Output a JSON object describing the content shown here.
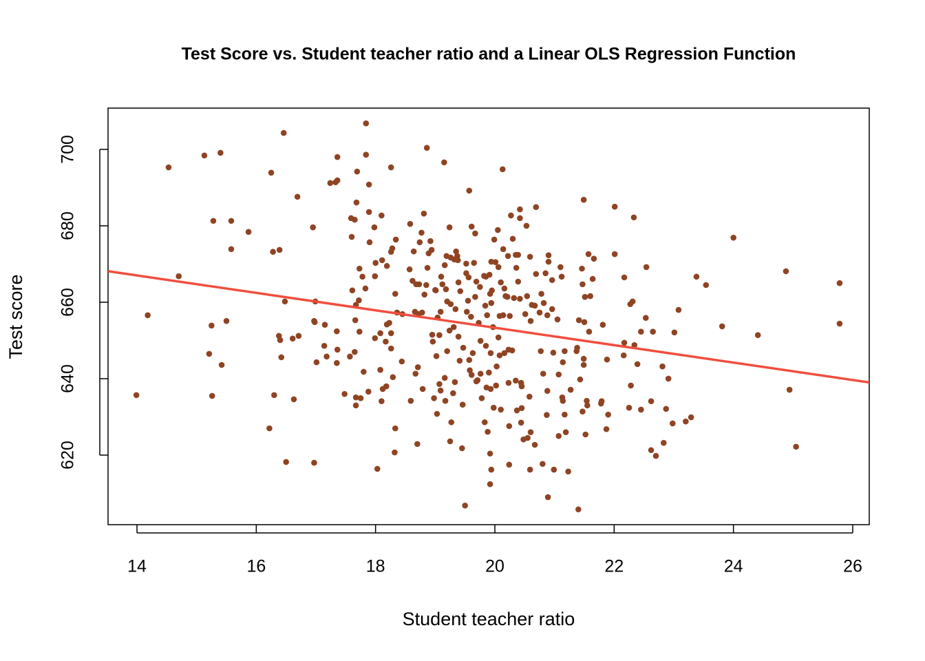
{
  "chart_data": {
    "type": "scatter",
    "title": "Test Score vs. Student teacher ratio and a Linear OLS Regression Function",
    "x_label": "Student teacher ratio",
    "y_label": "Test score",
    "color": "#8f4423",
    "xlim": [
      13.515,
      26.277
    ],
    "ylim": [
      601.8,
      710.8
    ],
    "xticks": [
      14,
      16,
      18,
      20,
      22,
      24,
      26
    ],
    "yticks": [
      620,
      640,
      660,
      680,
      700
    ],
    "regression": {
      "intercept": 698.93,
      "slope": -2.28,
      "color": "#f04e3e"
    },
    "x": [
      25.78,
      25.78,
      25.05,
      24.94,
      24.88,
      24.41,
      24.0,
      23.81,
      23.54,
      23.38,
      23.29,
      23.2,
      23.08,
      23.01,
      22.98,
      22.91,
      22.87,
      22.83,
      22.81,
      22.7,
      22.62,
      22.65,
      22.62,
      22.54,
      22.53,
      22.45,
      22.45,
      22.39,
      22.33,
      22.34,
      22.31,
      22.27,
      22.28,
      22.25,
      22.17,
      22.17,
      22.16,
      22.01,
      22.01,
      21.9,
      21.87,
      21.88,
      21.79,
      21.81,
      21.78,
      21.66,
      21.64,
      21.6,
      21.58,
      21.57,
      21.55,
      21.54,
      21.51,
      21.52,
      21.49,
      21.49,
      21.47,
      21.47,
      21.49,
      21.5,
      21.46,
      21.43,
      21.4,
      21.41,
      21.37,
      21.38,
      21.27,
      21.23,
      21.19,
      21.17,
      21.17,
      21.14,
      21.14,
      21.13,
      21.12,
      21.1,
      21.07,
      21.07,
      21.05,
      20.99,
      20.98,
      20.96,
      20.96,
      20.88,
      20.9,
      20.9,
      20.89,
      20.88,
      20.87,
      20.85,
      20.82,
      20.81,
      20.8,
      20.78,
      20.77,
      20.75,
      20.69,
      20.69,
      20.67,
      20.67,
      20.62,
      20.6,
      20.6,
      20.59,
      20.59,
      20.58,
      20.55,
      20.54,
      20.53,
      20.51,
      20.48,
      20.45,
      20.45,
      20.44,
      20.44,
      20.42,
      20.42,
      20.42,
      20.39,
      20.39,
      20.37,
      20.36,
      20.35,
      20.35,
      20.32,
      20.3,
      20.29,
      20.27,
      20.25,
      20.24,
      20.24,
      20.23,
      20.23,
      20.22,
      20.21,
      20.18,
      20.16,
      20.16,
      20.14,
      20.14,
      20.13,
      20.1,
      20.1,
      20.08,
      20.08,
      20.06,
      20.06,
      20.05,
      20.03,
      20.02,
      20.01,
      19.99,
      19.98,
      19.97,
      19.95,
      19.94,
      19.94,
      19.94,
      19.92,
      19.93,
      19.93,
      19.92,
      19.92,
      19.91,
      19.9,
      19.88,
      19.87,
      19.86,
      19.85,
      19.85,
      19.84,
      19.83,
      19.82,
      19.78,
      19.76,
      19.76,
      19.75,
      19.73,
      19.71,
      19.69,
      19.69,
      19.67,
      19.67,
      19.65,
      19.63,
      19.61,
      19.61,
      19.6,
      19.58,
      19.57,
      19.57,
      19.56,
      19.55,
      19.53,
      19.5,
      19.52,
      19.52,
      19.47,
      19.46,
      19.45,
      19.42,
      19.41,
      19.39,
      19.38,
      19.39,
      19.37,
      19.35,
      19.34,
      19.33,
      19.32,
      19.31,
      19.3,
      19.27,
      19.26,
      19.26,
      19.25,
      19.24,
      19.24,
      19.2,
      19.2,
      19.19,
      19.18,
      19.17,
      19.16,
      19.16,
      19.15,
      19.12,
      19.1,
      19.09,
      19.09,
      19.07,
      19.07,
      19.04,
      19.03,
      19.02,
      19.01,
      19.0,
      18.98,
      18.96,
      18.95,
      18.94,
      18.92,
      18.89,
      18.87,
      18.86,
      18.85,
      18.82,
      18.81,
      18.79,
      18.78,
      18.77,
      18.74,
      18.73,
      18.72,
      18.71,
      18.7,
      18.68,
      18.67,
      18.66,
      18.64,
      18.62,
      18.59,
      18.58,
      18.57,
      18.45,
      18.44,
      18.36,
      18.34,
      18.33,
      18.33,
      18.32,
      18.29,
      18.28,
      18.26,
      18.26,
      18.26,
      18.26,
      18.23,
      18.19,
      18.19,
      18.18,
      18.17,
      18.12,
      18.11,
      18.1,
      18.08,
      18.1,
      18.08,
      18.03,
      18.0,
      17.99,
      17.99,
      17.98,
      17.89,
      17.9,
      17.89,
      17.88,
      17.84,
      17.84,
      17.83,
      17.8,
      17.78,
      17.75,
      17.73,
      17.73,
      17.72,
      17.69,
      17.68,
      17.67,
      17.67,
      17.67,
      17.66,
      17.65,
      17.65,
      17.61,
      17.6,
      17.59,
      17.57,
      17.48,
      17.36,
      17.35,
      17.35,
      17.36,
      17.36,
      17.33,
      17.24,
      17.18,
      17.15,
      17.14,
      17.01,
      16.99,
      16.98,
      16.97,
      16.95,
      16.97,
      16.71,
      16.69,
      16.63,
      16.61,
      16.5,
      16.48,
      16.46,
      16.42,
      16.4,
      16.39,
      16.38,
      16.28,
      16.3,
      16.25,
      16.22,
      15.87,
      15.58,
      15.58,
      15.5,
      15.42,
      15.4,
      15.28,
      15.26,
      15.25,
      15.21,
      15.13,
      14.7,
      14.53,
      14.18,
      13.99
    ],
    "values": [
      654.4,
      665,
      622.2,
      637.1,
      668.1,
      651.4,
      676.9,
      653.7,
      664.5,
      666.7,
      629.9,
      628.8,
      658,
      652.1,
      628.3,
      640,
      632.1,
      623.2,
      643.2,
      619.8,
      621.3,
      652.3,
      634.1,
      669.2,
      655.9,
      652.3,
      631.9,
      643.8,
      682.2,
      648.8,
      660.2,
      659.5,
      638.2,
      632.4,
      666.5,
      649.4,
      646.1,
      672.6,
      685,
      630.6,
      626.8,
      645,
      634.1,
      654.1,
      633.5,
      671.4,
      666.1,
      661.6,
      652.3,
      672.6,
      633,
      634.2,
      661.4,
      625.4,
      686.8,
      645.2,
      664.7,
      631.4,
      643.6,
      654.8,
      668.8,
      639.8,
      605.8,
      655.3,
      647.2,
      648.1,
      637.1,
      615.7,
      626,
      630.6,
      647.2,
      634.2,
      644.3,
      635.1,
      666.7,
      669.2,
      641.1,
      625,
      655.5,
      616.2,
      646.8,
      665.8,
      658.2,
      656.6,
      672.3,
      670.6,
      609,
      636.8,
      630.5,
      667.6,
      659.8,
      641.3,
      617.7,
      662.2,
      647.2,
      657.3,
      684.9,
      667.4,
      659.1,
      622.7,
      659.3,
      655.1,
      626,
      616.2,
      671.9,
      635.3,
      624.5,
      661.6,
      680,
      656.9,
      624.1,
      632.3,
      638,
      628.5,
      638.9,
      684.3,
      660.9,
      682,
      665.4,
      672.4,
      631.7,
      669,
      639.5,
      672.4,
      661.1,
      676.6,
      647.4,
      682.7,
      656.4,
      617.5,
      627.6,
      638.9,
      647.6,
      672.1,
      661.4,
      661.6,
      646.7,
      663.6,
      673.9,
      656.6,
      694.8,
      665.2,
      631.9,
      656.4,
      646.1,
      650.8,
      669.2,
      678.9,
      643.2,
      638.2,
      670.5,
      676.4,
      632.4,
      653.5,
      663.1,
      616.2,
      659.8,
      670.6,
      662.2,
      637.3,
      646.7,
      612.4,
      620.4,
      667.2,
      641.6,
      626.1,
      656.6,
      637.7,
      648.6,
      666.7,
      659.1,
      628.6,
      666.9,
      634.9,
      649.9,
      641.3,
      664,
      654.6,
      639.6,
      665.4,
      639.3,
      678,
      661.4,
      670.3,
      646.7,
      679.8,
      641,
      656.2,
      642.2,
      689.2,
      644.9,
      666.5,
      660.4,
      657.5,
      606.8,
      670.1,
      667.6,
      648.1,
      633.2,
      621.8,
      662.9,
      644.7,
      651,
      671,
      665.2,
      672.1,
      673.3,
      658.2,
      639.1,
      671.2,
      653.5,
      636.2,
      628.6,
      659.5,
      671.7,
      623.6,
      652.6,
      679.6,
      647.2,
      660.2,
      672.1,
      663.4,
      634.2,
      640.2,
      669.7,
      696.6,
      664.7,
      666.7,
      636.9,
      657.5,
      638.6,
      651.4,
      656,
      630.8,
      645.9,
      663.1,
      663.2,
      634.9,
      649.7,
      651.5,
      673.7,
      676,
      672.8,
      669,
      700.4,
      664.5,
      662,
      683.2,
      637.3,
      657.3,
      678.2,
      675.7,
      664.7,
      656.9,
      643,
      622.9,
      664.7,
      641.3,
      657.5,
      673.3,
      665.6,
      634.2,
      680.5,
      668.6,
      656.9,
      644.5,
      657.3,
      676.4,
      662.2,
      627,
      620.7,
      640.4,
      674.1,
      673.2,
      695.3,
      651.9,
      647.9,
      654.6,
      669.5,
      654.2,
      638,
      649.7,
      637.3,
      671,
      682.7,
      651.9,
      634.1,
      642.3,
      616.4,
      670.3,
      666.8,
      650.6,
      679.6,
      683.6,
      675.7,
      690.8,
      636.6,
      706.8,
      698.6,
      663.6,
      641.8,
      666.7,
      634.9,
      668.8,
      652.3,
      660.5,
      694.2,
      686.1,
      633,
      635.1,
      659.3,
      655.3,
      647,
      681.6,
      663.1,
      677.1,
      682,
      645.8,
      636,
      647.6,
      652.4,
      644.1,
      698,
      691.9,
      691.4,
      691.2,
      645.8,
      654.1,
      648.6,
      644.3,
      660.2,
      654.8,
      655.1,
      679.6,
      618,
      651.2,
      687.6,
      634.6,
      650.5,
      618.2,
      660.2,
      704.3,
      645.6,
      650.1,
      673.7,
      651.2,
      673.2,
      635.7,
      693.9,
      627,
      678.4,
      681.3,
      673.9,
      655.1,
      643.6,
      699.1,
      681.3,
      635.5,
      653.9,
      646.5,
      698.4,
      666.8,
      695.3,
      656.6,
      635.7
    ]
  }
}
